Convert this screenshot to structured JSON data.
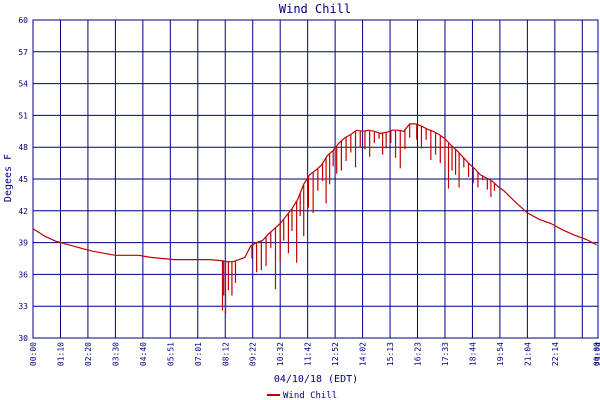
{
  "chart_data": {
    "type": "line",
    "title": "Wind Chill",
    "xlabel": "04/10/18 (EDT)",
    "ylabel": "Degees F",
    "ylim": [
      30,
      60
    ],
    "yticks": [
      30,
      33,
      36,
      39,
      42,
      45,
      48,
      51,
      54,
      57,
      60
    ],
    "x_tick_labels": [
      "00:00",
      "01:10",
      "02:20",
      "03:30",
      "04:40",
      "05:51",
      "07:01",
      "08:12",
      "09:22",
      "10:32",
      "11:42",
      "12:52",
      "14:02",
      "15:13",
      "16:23",
      "17:33",
      "18:44",
      "19:54",
      "21:04",
      "22:14",
      "00:00",
      "23:24"
    ],
    "grid": true,
    "legend_position": "bottom-center",
    "colors": {
      "series": "#c00000",
      "grid": "#000080",
      "text": "#000080"
    },
    "series": [
      {
        "name": "Wind Chill",
        "x_hours": [
          0.0,
          0.5,
          1.0,
          1.5,
          2.0,
          2.5,
          3.0,
          3.5,
          4.0,
          4.5,
          5.0,
          5.5,
          6.0,
          6.5,
          7.0,
          7.5,
          8.0,
          8.25,
          8.5,
          8.75,
          9.0,
          9.25,
          9.5,
          9.75,
          10.0,
          10.25,
          10.5,
          10.75,
          11.0,
          11.25,
          11.5,
          11.75,
          12.0,
          12.25,
          12.5,
          12.75,
          13.0,
          13.25,
          13.5,
          13.75,
          14.0,
          14.25,
          14.5,
          14.75,
          15.0,
          15.25,
          15.5,
          15.75,
          16.0,
          16.25,
          16.5,
          16.75,
          17.0,
          17.25,
          17.5,
          17.75,
          18.0,
          18.25,
          18.5,
          18.75,
          19.0,
          19.25,
          19.5,
          19.75,
          20.0,
          20.5,
          21.0,
          21.5,
          22.0,
          22.5,
          23.0,
          23.5,
          23.93
        ],
        "values": [
          40.3,
          39.6,
          39.1,
          38.8,
          38.5,
          38.2,
          38.0,
          37.8,
          37.8,
          37.8,
          37.6,
          37.5,
          37.4,
          37.4,
          37.4,
          37.4,
          37.3,
          37.2,
          37.2,
          37.4,
          37.6,
          38.7,
          39.0,
          39.2,
          39.8,
          40.3,
          40.8,
          41.5,
          42.2,
          43.1,
          44.5,
          45.4,
          45.8,
          46.3,
          47.2,
          47.7,
          48.4,
          48.9,
          49.2,
          49.6,
          49.5,
          49.6,
          49.5,
          49.3,
          49.4,
          49.6,
          49.6,
          49.5,
          50.2,
          50.2,
          50.0,
          49.7,
          49.5,
          49.2,
          48.8,
          48.2,
          47.7,
          47.1,
          46.5,
          46.0,
          45.4,
          45.1,
          44.8,
          44.3,
          43.9,
          42.8,
          41.8,
          41.2,
          40.8,
          40.2,
          39.7,
          39.3,
          38.8
        ],
        "dips": [
          [
            8.05,
            32.6
          ],
          [
            8.1,
            34.0
          ],
          [
            8.18,
            32.3
          ],
          [
            8.3,
            34.5
          ],
          [
            8.45,
            34.0
          ],
          [
            8.6,
            35.2
          ],
          [
            9.3,
            37.5
          ],
          [
            9.5,
            36.2
          ],
          [
            9.7,
            36.4
          ],
          [
            9.9,
            36.8
          ],
          [
            10.1,
            38.5
          ],
          [
            10.3,
            34.6
          ],
          [
            10.5,
            37.2
          ],
          [
            10.65,
            39.2
          ],
          [
            10.85,
            38.0
          ],
          [
            11.0,
            40.1
          ],
          [
            11.2,
            37.1
          ],
          [
            11.35,
            41.5
          ],
          [
            11.5,
            39.6
          ],
          [
            11.7,
            42.3
          ],
          [
            11.9,
            41.8
          ],
          [
            12.1,
            43.9
          ],
          [
            12.3,
            44.8
          ],
          [
            12.45,
            42.7
          ],
          [
            12.6,
            44.5
          ],
          [
            12.75,
            46.2
          ],
          [
            12.9,
            45.5
          ],
          [
            13.1,
            45.8
          ],
          [
            13.3,
            46.7
          ],
          [
            13.5,
            47.5
          ],
          [
            13.7,
            46.1
          ],
          [
            13.9,
            48.0
          ],
          [
            14.1,
            47.8
          ],
          [
            14.3,
            47.1
          ],
          [
            14.5,
            48.4
          ],
          [
            14.7,
            48.8
          ],
          [
            14.85,
            47.3
          ],
          [
            15.0,
            47.9
          ],
          [
            15.2,
            48.4
          ],
          [
            15.4,
            47.0
          ],
          [
            15.6,
            46.0
          ],
          [
            15.8,
            47.8
          ],
          [
            16.0,
            48.9
          ],
          [
            16.3,
            48.7
          ],
          [
            16.5,
            47.9
          ],
          [
            16.7,
            48.7
          ],
          [
            16.9,
            46.8
          ],
          [
            17.1,
            47.3
          ],
          [
            17.3,
            46.5
          ],
          [
            17.5,
            45.9
          ],
          [
            17.65,
            44.1
          ],
          [
            17.8,
            45.8
          ],
          [
            17.95,
            45.4
          ],
          [
            18.1,
            44.2
          ],
          [
            18.3,
            46.1
          ],
          [
            18.5,
            45.2
          ],
          [
            18.7,
            44.6
          ],
          [
            18.9,
            44.2
          ],
          [
            19.1,
            44.9
          ],
          [
            19.3,
            44.0
          ],
          [
            19.45,
            43.3
          ],
          [
            19.6,
            43.9
          ]
        ]
      }
    ]
  }
}
